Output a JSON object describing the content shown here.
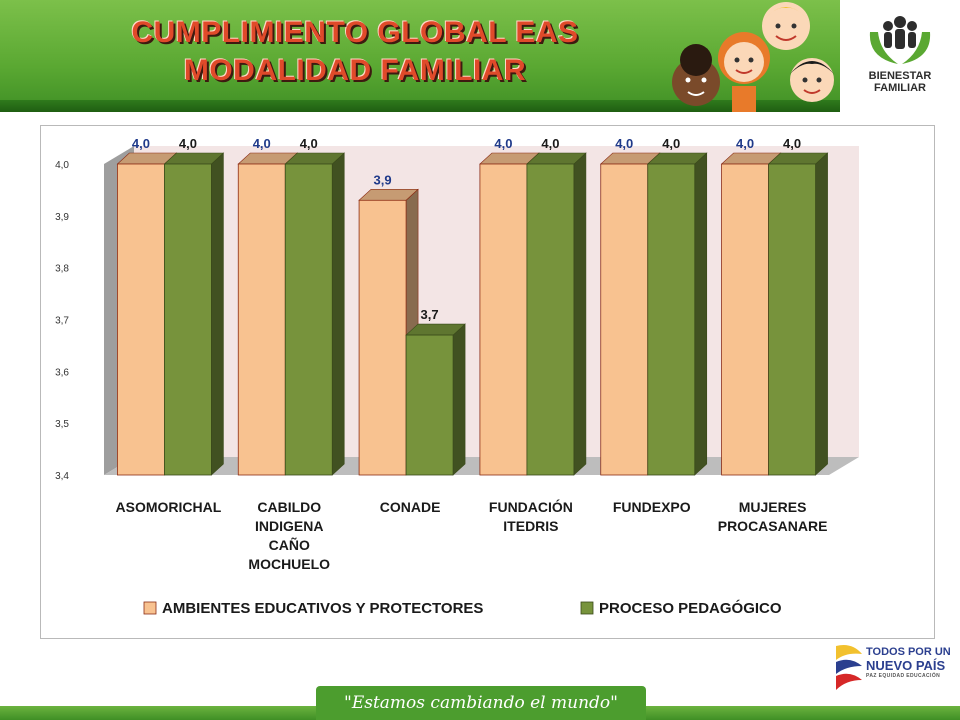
{
  "header": {
    "title_line1": "CUMPLIMIENTO GLOBAL EAS",
    "title_line2": "MODALIDAD FAMILIAR",
    "logo_line1": "BIENESTAR",
    "logo_line2": "FAMILIAR"
  },
  "footer": {
    "slogan": "\"Estamos cambiando el mundo\"",
    "gov_line1": "TODOS POR UN",
    "gov_line2": "NUEVO PAÍS",
    "gov_line3": "PAZ  EQUIDAD  EDUCACIÓN"
  },
  "colors": {
    "series1": "#f8c290",
    "series2": "#77933c",
    "bar_edge": "#8b2c14",
    "wall": "#f3e5e5",
    "header_green": "#5aa832",
    "title_red": "#e04a2a"
  },
  "chart_data": {
    "type": "bar",
    "categories": [
      [
        "ASOMORICHAL"
      ],
      [
        "CABILDO",
        "INDIGENA",
        "CAÑO",
        "MOCHUELO"
      ],
      [
        "CONADE"
      ],
      [
        "FUNDACIÓN",
        "ITEDRIS"
      ],
      [
        "FUNDEXPO"
      ],
      [
        "MUJERES",
        "PROCASANARE"
      ]
    ],
    "series": [
      {
        "name": "AMBIENTES EDUCATIVOS Y PROTECTORES",
        "values": [
          4.0,
          4.0,
          3.93,
          4.0,
          4.0,
          4.0
        ],
        "labels": [
          "4,0",
          "4,0",
          "3,9",
          "4,0",
          "4,0",
          "4,0"
        ],
        "label_color": "#1f3a8a"
      },
      {
        "name": "PROCESO PEDAGÓGICO",
        "values": [
          4.0,
          4.0,
          3.67,
          4.0,
          4.0,
          4.0
        ],
        "labels": [
          "4,0",
          "4,0",
          "3,7",
          "4,0",
          "4,0",
          "4,0"
        ],
        "label_color": "#1a1a1a"
      }
    ],
    "y_ticks": [
      "3,4",
      "3,5",
      "3,6",
      "3,7",
      "3,8",
      "3,9",
      "4,0"
    ],
    "ylim": [
      3.4,
      4.0
    ],
    "legend": "bottom",
    "grid": false,
    "3d": true
  }
}
